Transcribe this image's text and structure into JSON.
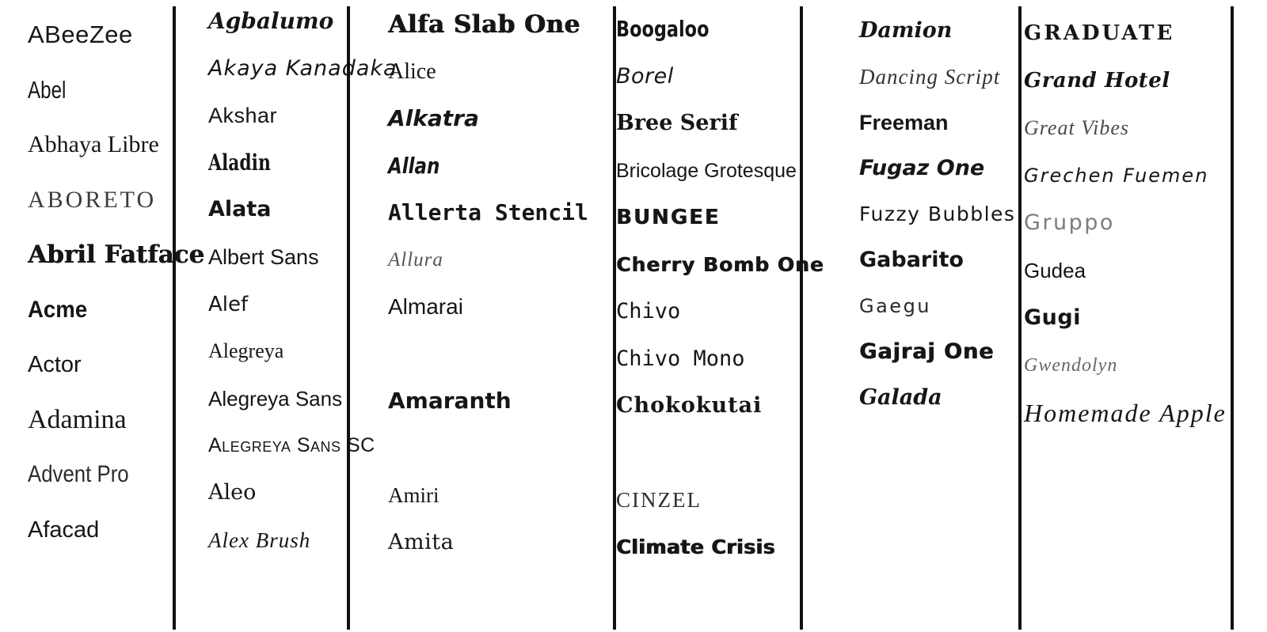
{
  "sheet": {
    "background": "#ffffff",
    "ink_color": "#161616",
    "divider_color": "#111111",
    "muted_colors": {
      "allura": "#555555",
      "gruppo": "#7d7d7d",
      "gwendolyn": "#666666",
      "great_vibes": "#4a4a4a"
    }
  },
  "columns": [
    {
      "items": [
        {
          "label": "ABeeZee",
          "row": 0
        },
        {
          "label": "Abel",
          "row": 1
        },
        {
          "label": "Abhaya Libre",
          "row": 2
        },
        {
          "label": "ABORETO",
          "row": 3
        },
        {
          "label": "Abril Fatface",
          "row": 4
        },
        {
          "label": "Acme",
          "row": 5
        },
        {
          "label": "Actor",
          "row": 6
        },
        {
          "label": "Adamina",
          "row": 7
        },
        {
          "label": "Advent Pro",
          "row": 8
        },
        {
          "label": "Afacad",
          "row": 9
        }
      ]
    },
    {
      "items": [
        {
          "label": "Agbalumo",
          "row": 0
        },
        {
          "label": "Akaya Kanadaka",
          "row": 1
        },
        {
          "label": "Akshar",
          "row": 2
        },
        {
          "label": "Aladin",
          "row": 3
        },
        {
          "label": "Alata",
          "row": 4
        },
        {
          "label": "Albert Sans",
          "row": 5
        },
        {
          "label": "Alef",
          "row": 6
        },
        {
          "label": "Alegreya",
          "row": 7
        },
        {
          "label": "Alegreya Sans",
          "row": 8
        },
        {
          "label": "Alegreya Sans SC",
          "row": 9
        },
        {
          "label": "Aleo",
          "row": 10
        },
        {
          "label": "Alex Brush",
          "row": 11
        }
      ]
    },
    {
      "items": [
        {
          "label": "Alfa Slab One",
          "row": 0
        },
        {
          "label": "Alice",
          "row": 1
        },
        {
          "label": "Alkatra",
          "row": 2
        },
        {
          "label": "Allan",
          "row": 3
        },
        {
          "label": "Allerta Stencil",
          "row": 4
        },
        {
          "label": "Allura",
          "row": 5
        },
        {
          "label": "Almarai",
          "row": 6
        },
        {
          "label": "Amaranth",
          "row": 8
        },
        {
          "label": "Amiri",
          "row": 10
        },
        {
          "label": "Amita",
          "row": 11
        }
      ]
    },
    {
      "items": [
        {
          "label": "Boogaloo",
          "row": 0
        },
        {
          "label": "Borel",
          "row": 1
        },
        {
          "label": "Bree Serif",
          "row": 2
        },
        {
          "label": "Bricolage Grotesque",
          "row": 3
        },
        {
          "label": "BUNGEE",
          "row": 4
        },
        {
          "label": "Cherry Bomb One",
          "row": 5
        },
        {
          "label": "Chivo",
          "row": 6
        },
        {
          "label": "Chivo Mono",
          "row": 7
        },
        {
          "label": "Chokokutai",
          "row": 8
        },
        {
          "label": "CINZEL",
          "row": 10
        },
        {
          "label": "Climate Crisis",
          "row": 11
        }
      ]
    },
    {
      "items": [
        {
          "label": "Damion",
          "row": 0
        },
        {
          "label": "Dancing Script",
          "row": 1
        },
        {
          "label": "Freeman",
          "row": 2
        },
        {
          "label": "Fugaz One",
          "row": 3
        },
        {
          "label": "Fuzzy Bubbles",
          "row": 4
        },
        {
          "label": "Gabarito",
          "row": 5
        },
        {
          "label": "Gaegu",
          "row": 6
        },
        {
          "label": "Gajraj One",
          "row": 7
        },
        {
          "label": "Galada",
          "row": 8
        }
      ]
    },
    {
      "items": [
        {
          "label": "GRADUATE",
          "row": 0
        },
        {
          "label": "Grand Hotel",
          "row": 1
        },
        {
          "label": "Great Vibes",
          "row": 2
        },
        {
          "label": "Grechen Fuemen",
          "row": 3
        },
        {
          "label": "Gruppo",
          "row": 4
        },
        {
          "label": "Gudea",
          "row": 5
        },
        {
          "label": "Gugi",
          "row": 6
        },
        {
          "label": "Gwendolyn",
          "row": 7
        },
        {
          "label": "Homemade Apple",
          "row": 8
        }
      ]
    }
  ]
}
